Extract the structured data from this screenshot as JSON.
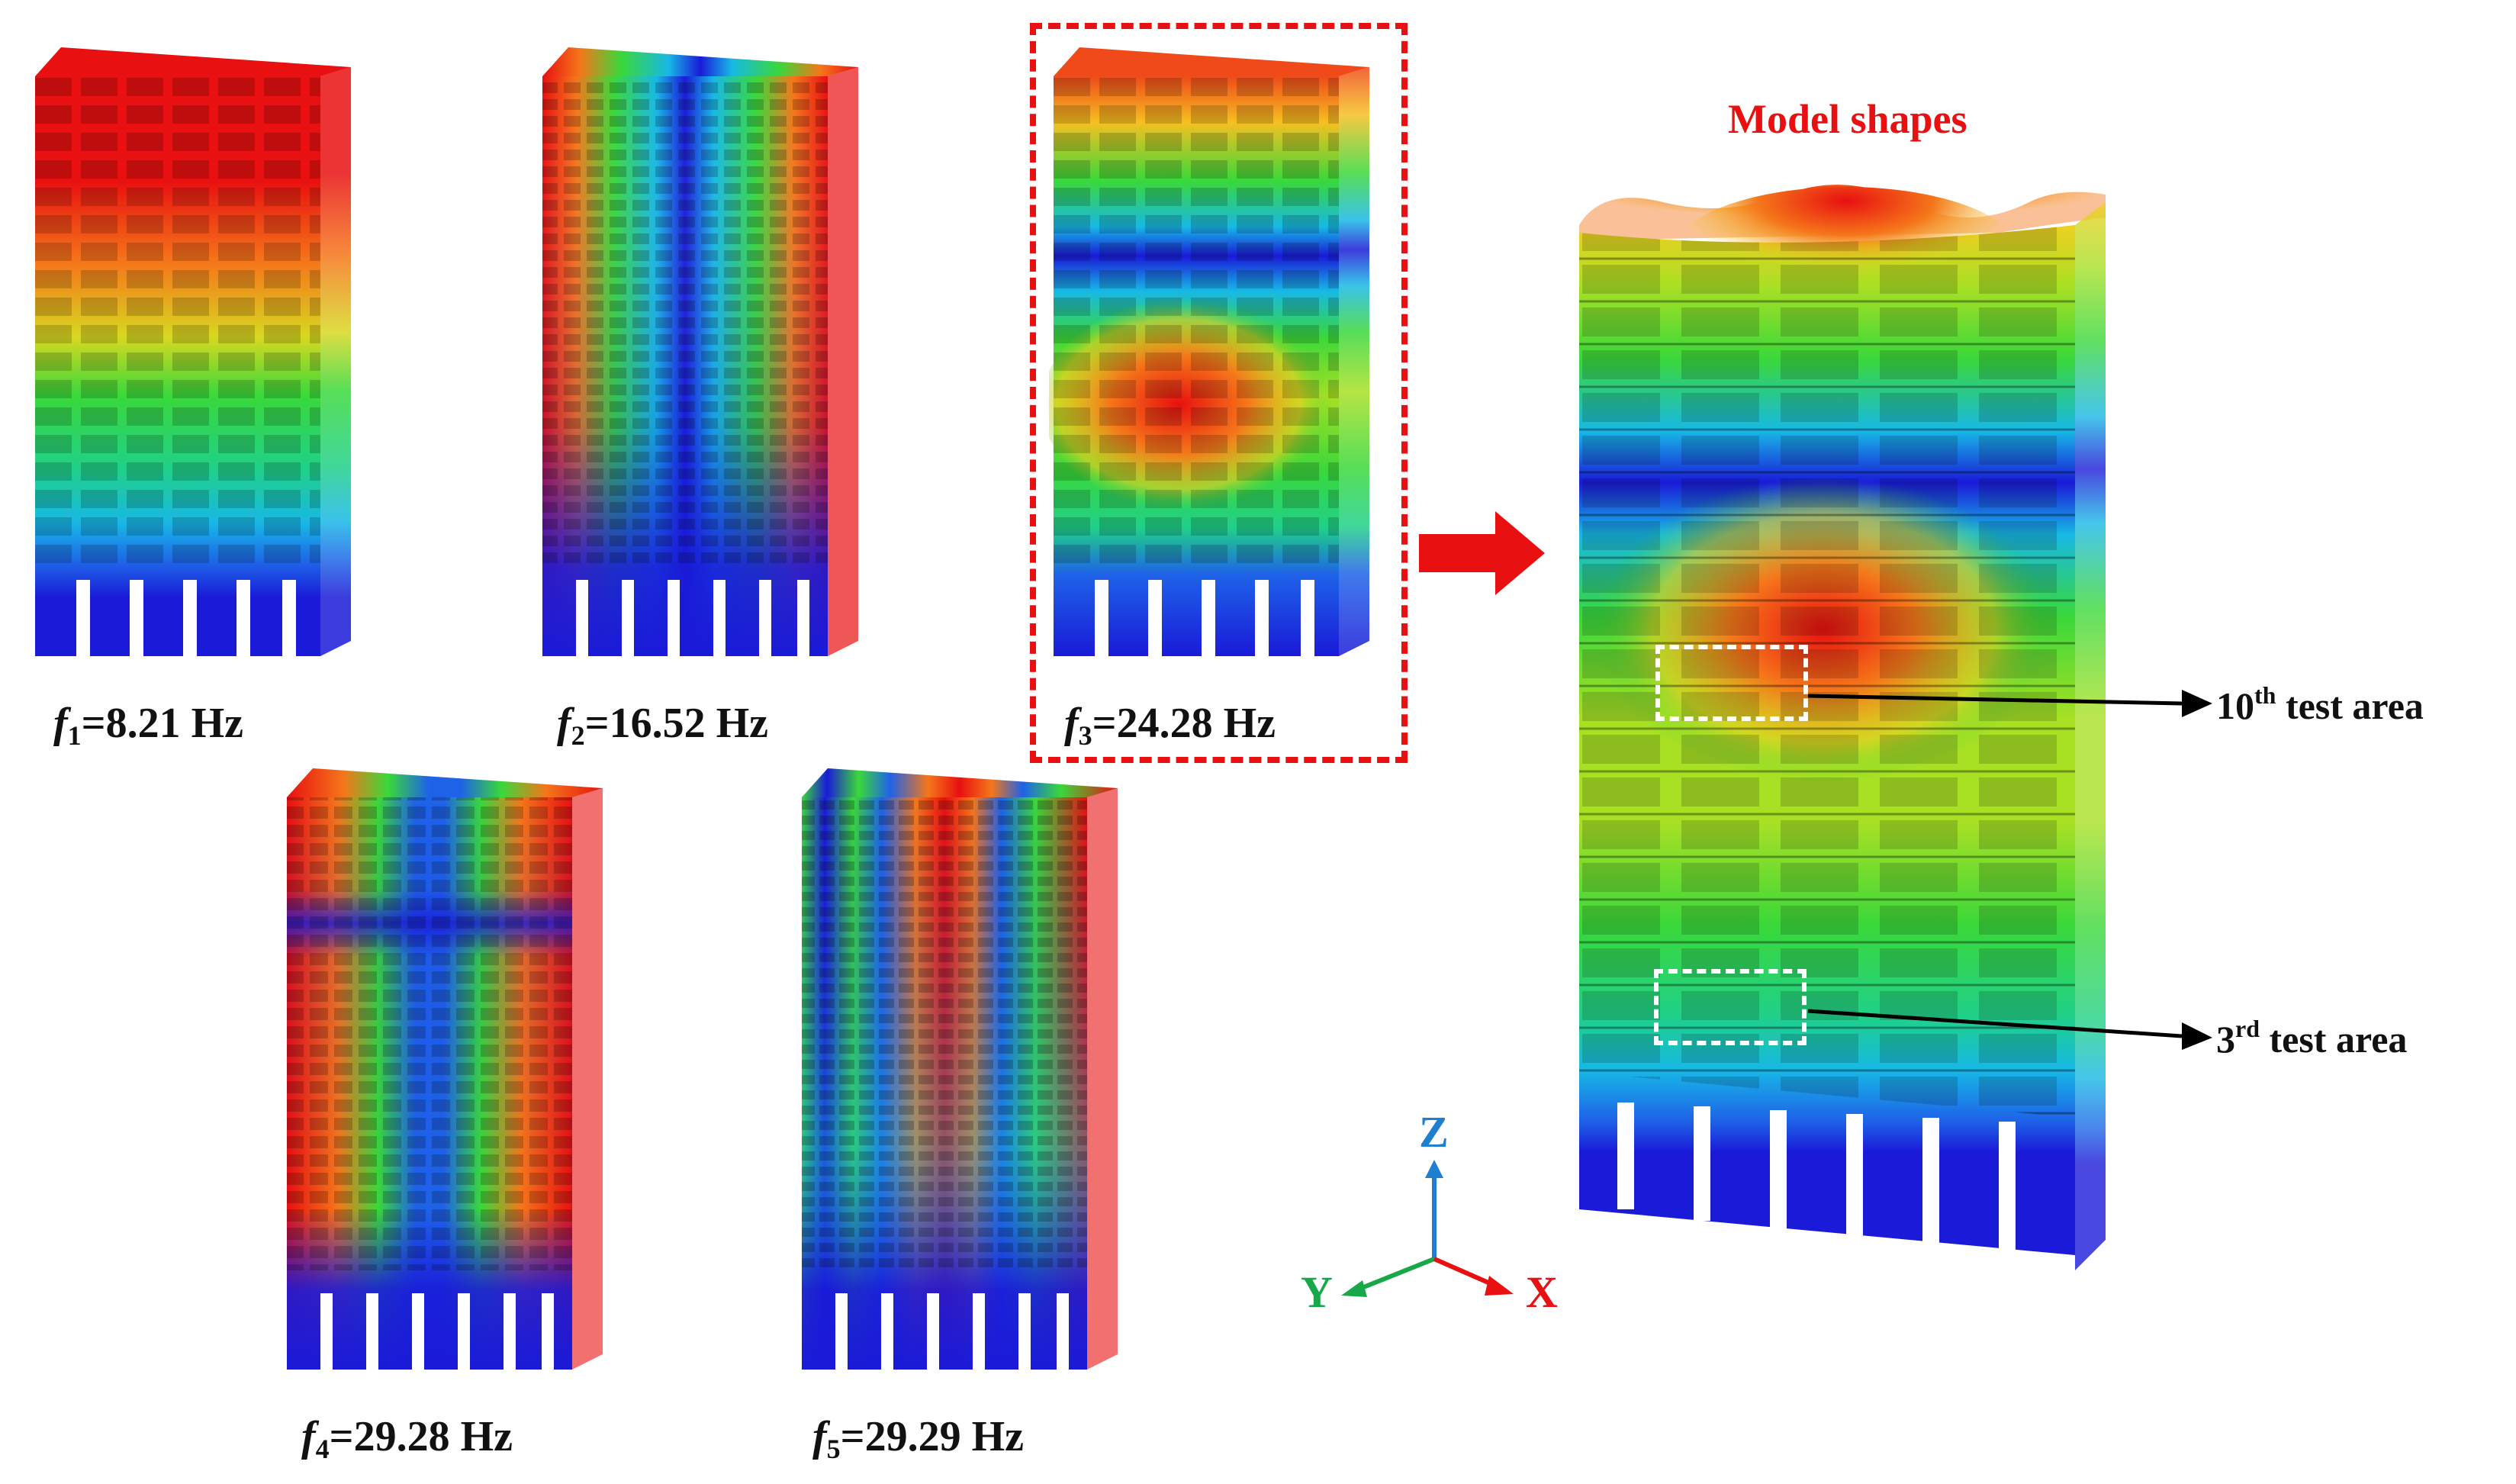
{
  "modes": [
    {
      "symbol": "f",
      "index": "1",
      "value": "=8.21 Hz"
    },
    {
      "symbol": "f",
      "index": "2",
      "value": "=16.52 Hz"
    },
    {
      "symbol": "f",
      "index": "3",
      "value": "=24.28 Hz"
    },
    {
      "symbol": "f",
      "index": "4",
      "value": "=29.28 Hz"
    },
    {
      "symbol": "f",
      "index": "5",
      "value": "=29.29 Hz"
    }
  ],
  "detail": {
    "title": "Model shapes",
    "areas": [
      {
        "ord": "10",
        "sup": "th",
        "text": " test area"
      },
      {
        "ord": "3",
        "sup": "rd",
        "text": " test area"
      }
    ]
  },
  "axes": {
    "z": "Z",
    "y": "Y",
    "x": "X"
  },
  "colors": {
    "highlight": "#e81010",
    "z_axis": "#1f7fd0",
    "y_axis": "#18a84a",
    "x_axis": "#e81010",
    "contour": [
      "#1a1ad8",
      "#1e62e8",
      "#17b8e6",
      "#1fd08a",
      "#3ad83a",
      "#a8e024",
      "#f0d020",
      "#f59a1c",
      "#f04a1a",
      "#e81010"
    ]
  }
}
